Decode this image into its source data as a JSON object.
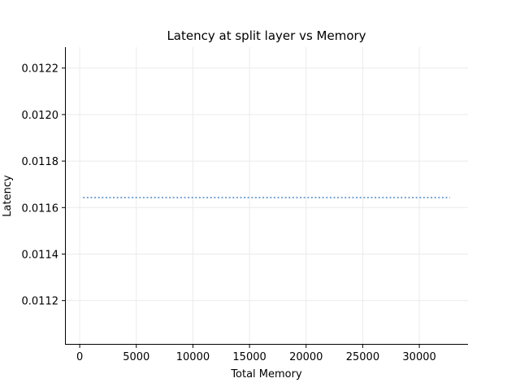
{
  "chart_data": {
    "type": "line",
    "title": "Latency at split layer vs Memory",
    "xlabel": "Total Memory",
    "ylabel": "Latency",
    "xlim": [
      -1300,
      34300
    ],
    "ylim": [
      0.01101,
      0.01229
    ],
    "xticks": [
      0,
      5000,
      10000,
      15000,
      20000,
      25000,
      30000
    ],
    "xtick_labels": [
      "0",
      "5000",
      "10000",
      "15000",
      "20000",
      "25000",
      "30000"
    ],
    "yticks": [
      0.0112,
      0.0114,
      0.0116,
      0.0118,
      0.012,
      0.0122
    ],
    "ytick_labels": [
      "0.0112",
      "0.0114",
      "0.0116",
      "0.0118",
      "0.0120",
      "0.0122"
    ],
    "grid": true,
    "series": [
      {
        "color": "#4a86c8",
        "line_style": "dotted",
        "x": [
          300,
          32700
        ],
        "y": [
          0.011643,
          0.011643
        ]
      }
    ]
  }
}
